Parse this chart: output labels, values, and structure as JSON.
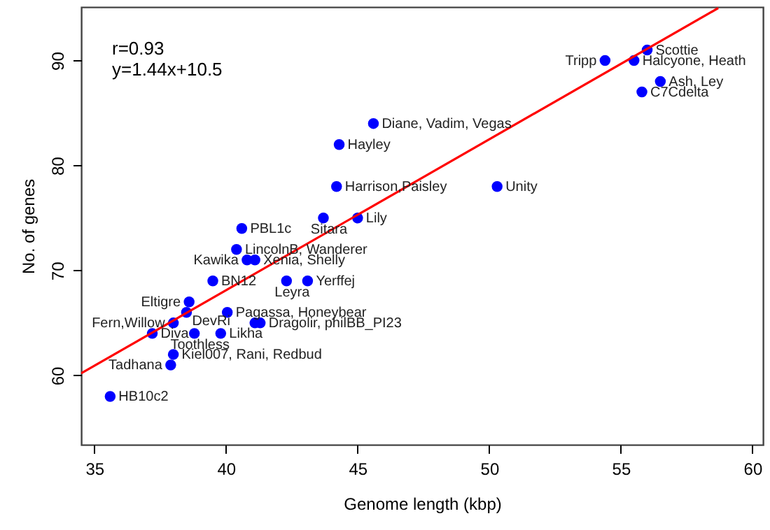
{
  "chart_data": {
    "type": "scatter",
    "xlabel": "Genome length (kbp)",
    "ylabel": "No. of genes",
    "xlim": [
      34.5,
      60.4
    ],
    "ylim": [
      53.4,
      95.1
    ],
    "xticks": [
      35,
      40,
      45,
      50,
      55,
      60
    ],
    "yticks": [
      60,
      70,
      80,
      90
    ],
    "grid": false,
    "marker": "circle",
    "series": [
      {
        "color": "#0000ff",
        "x": [
          35.6,
          37.9,
          38.0,
          37.2,
          38.0,
          38.5,
          38.6,
          38.8,
          39.8,
          39.5,
          40.05,
          41.1,
          41.3,
          42.3,
          43.1,
          40.8,
          41.1,
          40.4,
          40.6,
          43.7,
          45.0,
          44.2,
          44.3,
          45.6,
          50.3,
          54.4,
          55.5,
          56.0,
          56.5,
          55.8
        ],
        "values": [
          58,
          61,
          62,
          64,
          65,
          66,
          67,
          64,
          64,
          69,
          66,
          65,
          65,
          69,
          69,
          71,
          71,
          72,
          74,
          75,
          75,
          78,
          82,
          84,
          78,
          90,
          90,
          91,
          88,
          87
        ]
      },
      {
        "type": "line",
        "marker": "none",
        "color": "#ff0000",
        "x": [
          34.5,
          58.7
        ],
        "values": [
          60.2,
          95.0
        ]
      }
    ],
    "annotations": [
      "r=0.93",
      "y=1.44x+10.5",
      {
        "text": "HB10c2",
        "x": 35.6,
        "y": 58
      },
      {
        "text": "Tadhana",
        "x": 37.9,
        "y": 61
      },
      {
        "text": "Kiel007, Rani, Redbud",
        "x": 38.0,
        "y": 62
      },
      {
        "text": "Diva",
        "x": 37.2,
        "y": 64
      },
      {
        "text": "Fern,Willow",
        "x": 38.0,
        "y": 65
      },
      {
        "text": "DevRi",
        "x": 38.5,
        "y": 66
      },
      {
        "text": "Eltigre",
        "x": 38.6,
        "y": 67
      },
      {
        "text": "Toothless",
        "x": 38.8,
        "y": 64
      },
      {
        "text": "Likha",
        "x": 39.8,
        "y": 64
      },
      {
        "text": "BN12",
        "x": 39.5,
        "y": 69
      },
      {
        "text": "Pagassa, Honeybear",
        "x": 40.05,
        "y": 66
      },
      {
        "text": "Dragolir, philBB_PI23",
        "x": 41.3,
        "y": 65
      },
      {
        "text": "Leyra",
        "x": 42.3,
        "y": 69
      },
      {
        "text": "Yerffej",
        "x": 43.1,
        "y": 69
      },
      {
        "text": "Kawika",
        "x": 40.8,
        "y": 71
      },
      {
        "text": "Xenia, Shelly",
        "x": 41.1,
        "y": 71
      },
      {
        "text": "LincolnB, Wanderer",
        "x": 40.4,
        "y": 72
      },
      {
        "text": "PBL1c",
        "x": 40.6,
        "y": 74
      },
      {
        "text": "Sitara",
        "x": 43.7,
        "y": 75
      },
      {
        "text": "Lily",
        "x": 45.0,
        "y": 75
      },
      {
        "text": "Harrison,Paisley",
        "x": 44.2,
        "y": 78
      },
      {
        "text": "Hayley",
        "x": 44.3,
        "y": 82
      },
      {
        "text": "Diane, Vadim, Vegas",
        "x": 45.6,
        "y": 84
      },
      {
        "text": "Unity",
        "x": 50.3,
        "y": 78
      },
      {
        "text": "Tripp",
        "x": 54.4,
        "y": 90
      },
      {
        "text": "Halcyone, Heath",
        "x": 55.5,
        "y": 90
      },
      {
        "text": "Scottie",
        "x": 56.0,
        "y": 91
      },
      {
        "text": "Ash, Ley",
        "x": 56.5,
        "y": 88
      },
      {
        "text": "C7Cdelta",
        "x": 55.8,
        "y": 87
      }
    ]
  }
}
